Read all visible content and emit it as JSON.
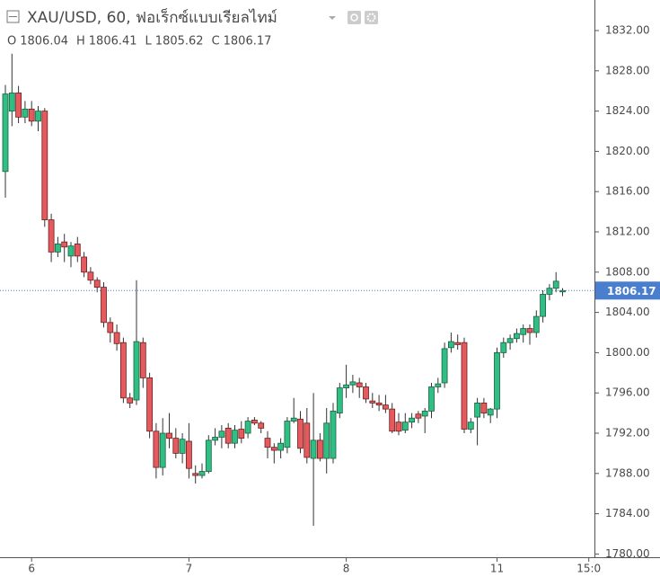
{
  "chart_data": {
    "type": "candlestick",
    "title": "XAU/USD, 60, ฟอเร็กซ์แบบเรียลไทม์",
    "ohlc_labels": [
      "O",
      "H",
      "L",
      "C"
    ],
    "up_color": "#2fbf84",
    "down_color": "#e55a5c",
    "last_price_color": "#4a7ecf",
    "grid": false,
    "ylim": [
      1780,
      1834.2
    ],
    "yticks": [
      {
        "value": 1780,
        "label": "1780.00"
      },
      {
        "value": 1784,
        "label": "1784.00"
      },
      {
        "value": 1788,
        "label": "1788.00"
      },
      {
        "value": 1792,
        "label": "1792.00"
      },
      {
        "value": 1796,
        "label": "1796.00"
      },
      {
        "value": 1800,
        "label": "1800.00"
      },
      {
        "value": 1804,
        "label": "1804.00"
      },
      {
        "value": 1808,
        "label": "1808.00"
      },
      {
        "value": 1812,
        "label": "1812.00"
      },
      {
        "value": 1816,
        "label": "1816.00"
      },
      {
        "value": 1820,
        "label": "1820.00"
      },
      {
        "value": 1824,
        "label": "1824.00"
      },
      {
        "value": 1828,
        "label": "1828.00"
      },
      {
        "value": 1832,
        "label": "1832.00"
      }
    ],
    "xticks": [
      {
        "value": 4,
        "label": "6"
      },
      {
        "value": 28,
        "label": "7"
      },
      {
        "value": 52,
        "label": "8"
      },
      {
        "value": 75,
        "label": "11"
      },
      {
        "value": 89,
        "label": "15:0"
      }
    ],
    "open": [
      1818.0,
      1824.0,
      1825.8,
      1823.4,
      1824.2,
      1823.0,
      1824.0,
      1813.2,
      1810.0,
      1811.0,
      1809.6,
      1810.8,
      1809.5,
      1808.0,
      1807.2,
      1806.5,
      1803.0,
      1802.0,
      1801.0,
      1795.5,
      1795.3,
      1801.0,
      1797.5,
      1792.2,
      1788.6,
      1792.0,
      1791.5,
      1790.0,
      1791.2,
      1788.0,
      1787.8,
      1788.2,
      1791.3,
      1791.6,
      1792.5,
      1791.0,
      1792.4,
      1792.0,
      1793.3,
      1793.0,
      1791.5,
      1790.6,
      1790.3,
      1790.6,
      1793.2,
      1793.4,
      1793.0,
      1789.5,
      1791.3,
      1789.5,
      1789.5,
      1794.0,
      1796.5,
      1796.8,
      1797.0,
      1796.6,
      1795.2,
      1795.0,
      1794.8,
      1794.4,
      1793.1,
      1792.3,
      1793.1,
      1793.9,
      1793.7,
      1794.2,
      1796.6,
      1797.0,
      1800.5,
      1801.0,
      1801.0,
      1792.4,
      1793.6,
      1795.0,
      1793.8,
      1794.4,
      1800.0,
      1801.0,
      1801.4,
      1801.8,
      1802.4,
      1802.0,
      1803.6,
      1805.8,
      1806.4,
      1806.04
    ],
    "high": [
      1826.6,
      1829.7,
      1826.5,
      1825.0,
      1825.0,
      1824.5,
      1824.3,
      1813.8,
      1811.5,
      1811.8,
      1811.0,
      1811.5,
      1810.0,
      1808.5,
      1807.5,
      1807.0,
      1803.5,
      1802.8,
      1801.5,
      1796.0,
      1807.2,
      1801.5,
      1798.0,
      1793.0,
      1793.5,
      1794.0,
      1792.5,
      1792.0,
      1793.0,
      1788.8,
      1789.0,
      1791.8,
      1792.5,
      1792.8,
      1793.0,
      1792.8,
      1793.2,
      1793.6,
      1793.6,
      1793.2,
      1792.2,
      1791.0,
      1791.5,
      1793.6,
      1795.5,
      1794.2,
      1794.5,
      1796.0,
      1792.0,
      1794.5,
      1795.0,
      1797.0,
      1798.8,
      1797.8,
      1797.5,
      1797.0,
      1796.0,
      1795.8,
      1795.8,
      1795.0,
      1794.0,
      1794.0,
      1794.0,
      1794.2,
      1794.5,
      1797.0,
      1797.5,
      1801.0,
      1802.0,
      1801.8,
      1801.5,
      1793.5,
      1795.5,
      1795.5,
      1794.5,
      1800.5,
      1801.5,
      1801.8,
      1802.4,
      1802.8,
      1802.8,
      1804.2,
      1806.2,
      1806.8,
      1808.0,
      1806.41
    ],
    "low": [
      1815.4,
      1822.5,
      1822.8,
      1822.8,
      1822.5,
      1822.0,
      1812.5,
      1809.0,
      1809.5,
      1809.0,
      1808.5,
      1809.0,
      1807.5,
      1806.8,
      1806.0,
      1802.5,
      1801.0,
      1800.2,
      1795.0,
      1794.5,
      1794.8,
      1796.5,
      1791.5,
      1787.5,
      1787.8,
      1790.5,
      1789.5,
      1789.0,
      1787.5,
      1787.0,
      1787.5,
      1788.0,
      1790.8,
      1790.5,
      1790.5,
      1790.5,
      1791.0,
      1791.5,
      1792.8,
      1792.0,
      1789.5,
      1789.0,
      1789.5,
      1790.0,
      1793.0,
      1790.0,
      1789.0,
      1782.8,
      1789.2,
      1788.0,
      1789.0,
      1793.5,
      1795.5,
      1796.0,
      1795.5,
      1795.0,
      1794.5,
      1794.2,
      1794.0,
      1792.0,
      1791.8,
      1792.0,
      1792.5,
      1793.0,
      1792.0,
      1793.5,
      1796.0,
      1796.5,
      1800.0,
      1800.3,
      1792.0,
      1792.0,
      1790.8,
      1793.5,
      1793.0,
      1793.5,
      1799.5,
      1800.3,
      1801.0,
      1801.0,
      1800.8,
      1801.5,
      1803.0,
      1805.2,
      1806.0,
      1805.62
    ],
    "close": [
      1825.7,
      1825.8,
      1823.4,
      1824.2,
      1823.0,
      1824.0,
      1813.2,
      1810.0,
      1810.8,
      1810.5,
      1810.6,
      1809.6,
      1808.0,
      1807.2,
      1806.5,
      1803.0,
      1802.0,
      1800.9,
      1795.5,
      1795.0,
      1801.1,
      1797.5,
      1792.2,
      1788.6,
      1792.0,
      1791.5,
      1790.0,
      1791.4,
      1788.5,
      1787.8,
      1788.2,
      1791.3,
      1791.6,
      1792.2,
      1791.0,
      1792.3,
      1791.5,
      1793.2,
      1793.0,
      1792.5,
      1790.6,
      1790.3,
      1791.0,
      1793.2,
      1793.5,
      1790.5,
      1789.6,
      1791.3,
      1789.5,
      1793.0,
      1794.2,
      1796.5,
      1796.8,
      1797.1,
      1796.6,
      1795.4,
      1795.0,
      1794.8,
      1794.4,
      1792.2,
      1792.2,
      1793.1,
      1793.5,
      1793.5,
      1794.2,
      1796.6,
      1796.9,
      1800.4,
      1801.1,
      1800.8,
      1792.4,
      1793.1,
      1795.0,
      1794.0,
      1794.4,
      1800.0,
      1801.0,
      1801.4,
      1801.9,
      1802.4,
      1802.0,
      1803.6,
      1805.8,
      1806.4,
      1807.1,
      1806.17
    ]
  }
}
